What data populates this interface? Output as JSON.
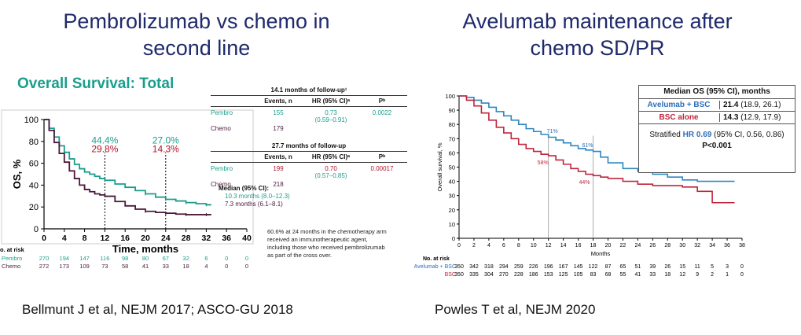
{
  "left": {
    "heading": "Pembrolizumab vs chemo in second line",
    "subtitle": "Overall Survival: Total",
    "citation": "Bellmunt J et al, NEJM 2017; ASCO-GU 2018",
    "colors": {
      "pembro": "#1a9e8c",
      "chemo": "#4a1a3c",
      "subtitle": "#1a9e8c",
      "hr": "#1a9e8c",
      "pval": "#1a9e8c",
      "events2": "#b0122a"
    },
    "table1": {
      "caption": "14.1 months of follow-up¹",
      "headers": [
        "Events, n",
        "HR (95% CI)ᵃ",
        "Pᵇ"
      ],
      "rows": [
        {
          "arm": "Pembro",
          "events": "155",
          "hr": "0.73",
          "ci": "(0.59–0.91)",
          "p": "0.0022"
        },
        {
          "arm": "Chemo",
          "events": "179",
          "hr": "",
          "ci": "",
          "p": ""
        }
      ]
    },
    "table2": {
      "caption": "27.7 months of follow-up",
      "headers": [
        "Events, n",
        "HR (95% CI)ᵃ",
        "Pᵇ"
      ],
      "rows": [
        {
          "arm": "Pembro",
          "events": "199",
          "hr": "0.70",
          "ci": "(0.57–0.85)",
          "p": "0.00017"
        },
        {
          "arm": "Chemo",
          "events": "218",
          "hr": "",
          "ci": "",
          "p": ""
        }
      ]
    },
    "median": {
      "label": "Median (95% CI):",
      "pembro": "10.3 months (8.0–12.3)",
      "chemo": "7.3 months (6.1–8.1)"
    },
    "footnote": [
      "60.6% at 24 months in the chemotherapy arm",
      "received an immunotherapeutic agent,",
      "including those who received pembrolizumab",
      "as part of the cross over."
    ],
    "at_risk": {
      "label": "o. at risk",
      "rows": [
        {
          "arm": "Pembro",
          "values": [
            "270",
            "194",
            "147",
            "116",
            "98",
            "80",
            "67",
            "32",
            "6",
            "0",
            "0"
          ]
        },
        {
          "arm": "Chemo",
          "values": [
            "272",
            "173",
            "109",
            "73",
            "58",
            "41",
            "33",
            "18",
            "4",
            "0",
            "0"
          ]
        }
      ]
    }
  },
  "right": {
    "heading": "Avelumab maintenance after chemo SD/PR",
    "citation": "Powles T et al, NEJM 2020",
    "colors": {
      "avelumab": "#2e86c1",
      "bsc": "#c0243c",
      "label_ave": "#2e6fb8",
      "label_bsc": "#c0243c"
    },
    "table": {
      "header": "Median OS (95% CI), months",
      "rows": [
        {
          "arm": "Avelumab + BSC",
          "value": "21.4",
          "ci": "(18.9, 26.1)"
        },
        {
          "arm": "BSC alone",
          "value": "14.3",
          "ci": "(12.9, 17.9)"
        }
      ],
      "hr_prefix": "Stratified",
      "hr_label": "HR 0.69",
      "hr_ci": "(95% CI, 0.56, 0.86)",
      "p": "P<0.001"
    },
    "at_risk": {
      "label": "No. at risk",
      "rows": [
        {
          "arm": "Avelumab + BSC",
          "values": [
            "350",
            "342",
            "318",
            "294",
            "259",
            "226",
            "196",
            "167",
            "145",
            "122",
            "87",
            "65",
            "51",
            "39",
            "26",
            "15",
            "11",
            "5",
            "3",
            "0"
          ]
        },
        {
          "arm": "BSC",
          "values": [
            "350",
            "335",
            "304",
            "270",
            "228",
            "186",
            "153",
            "125",
            "105",
            "83",
            "68",
            "55",
            "41",
            "33",
            "18",
            "12",
            "9",
            "2",
            "1",
            "0"
          ]
        }
      ]
    }
  },
  "chart_data": [
    {
      "type": "line",
      "xlabel": "Time, months",
      "ylabel": "OS, %",
      "xlim": [
        0,
        40
      ],
      "ylim": [
        0,
        100
      ],
      "xticks": [
        0,
        4,
        8,
        12,
        16,
        20,
        24,
        28,
        32,
        36,
        40
      ],
      "yticks": [
        0,
        20,
        40,
        60,
        80,
        100
      ],
      "annotations": [
        {
          "x": 12,
          "pembro": "44.4%",
          "chemo": "29.8%"
        },
        {
          "x": 24,
          "pembro": "27.0%",
          "chemo": "14.3%"
        }
      ],
      "series": [
        {
          "key": "pembro",
          "x": [
            0,
            1,
            2,
            3,
            4,
            5,
            6,
            7,
            8,
            9,
            10,
            11,
            12,
            14,
            16,
            18,
            20,
            22,
            24,
            26,
            28,
            30,
            32,
            33
          ],
          "y": [
            100,
            92,
            84,
            76,
            70,
            64,
            59,
            55,
            52,
            50,
            48,
            46,
            44.4,
            41,
            38,
            35,
            32,
            29,
            27,
            25.5,
            24,
            23,
            22,
            22
          ]
        },
        {
          "key": "chemo",
          "x": [
            0,
            1,
            2,
            3,
            4,
            5,
            6,
            7,
            8,
            9,
            10,
            11,
            12,
            14,
            16,
            18,
            20,
            22,
            24,
            26,
            28,
            30,
            32,
            33
          ],
          "y": [
            100,
            90,
            79,
            69,
            61,
            53,
            46,
            40,
            36,
            34,
            32,
            31,
            29.8,
            25,
            21,
            18,
            16,
            15,
            14.3,
            13.5,
            13,
            13,
            13,
            13
          ]
        }
      ]
    },
    {
      "type": "line",
      "xlabel": "Months",
      "ylabel": "Overall survival, %",
      "xlim": [
        0,
        38
      ],
      "ylim": [
        0,
        100
      ],
      "xticks": [
        0,
        2,
        4,
        6,
        8,
        10,
        12,
        14,
        16,
        18,
        20,
        22,
        24,
        26,
        28,
        30,
        32,
        34,
        36,
        38
      ],
      "yticks": [
        0,
        10,
        20,
        30,
        40,
        50,
        60,
        70,
        80,
        90,
        100
      ],
      "annotations": [
        {
          "x": 12,
          "avelumab": "71%",
          "bsc": "58%"
        },
        {
          "x": 18,
          "avelumab": "61%",
          "bsc": "44%"
        }
      ],
      "series": [
        {
          "key": "avelumab",
          "x": [
            0,
            1,
            2,
            3,
            4,
            5,
            6,
            7,
            8,
            9,
            10,
            11,
            12,
            13,
            14,
            15,
            16,
            17,
            18,
            19,
            20,
            22,
            24,
            26,
            28,
            30,
            32,
            34,
            36,
            37
          ],
          "y": [
            100,
            99,
            97,
            95,
            92,
            89,
            86,
            83,
            80,
            77,
            75,
            73,
            71,
            69,
            67,
            65,
            63,
            62,
            61,
            57,
            53,
            49,
            47,
            45,
            43,
            41,
            40,
            40,
            40,
            40
          ]
        },
        {
          "key": "bsc",
          "x": [
            0,
            1,
            2,
            3,
            4,
            5,
            6,
            7,
            8,
            9,
            10,
            11,
            12,
            13,
            14,
            15,
            16,
            17,
            18,
            19,
            20,
            22,
            24,
            26,
            28,
            30,
            32,
            33,
            34,
            35,
            36,
            37
          ],
          "y": [
            100,
            97,
            93,
            88,
            83,
            78,
            74,
            70,
            66,
            63,
            61,
            59,
            58,
            55,
            52,
            49,
            47,
            45,
            44,
            43,
            42,
            40,
            38,
            37,
            37,
            36,
            33,
            33,
            25,
            25,
            25,
            25
          ]
        }
      ]
    }
  ]
}
